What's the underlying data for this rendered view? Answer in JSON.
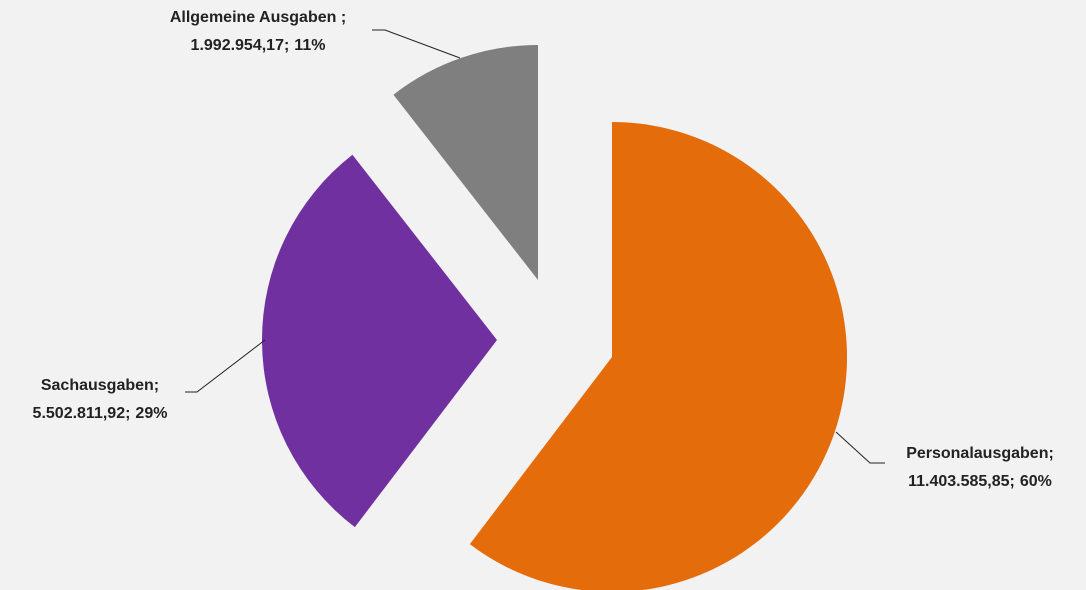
{
  "chart_data": {
    "type": "pie",
    "categories": [
      "Personalausgaben;",
      "Sachausgaben;",
      "Allgemeine Ausgaben ;"
    ],
    "values": [
      11403585.85,
      5502811.92,
      1992954.17
    ],
    "value_labels": [
      "11.403.585,85;",
      "5.502.811,92;",
      "1.992.954,17;"
    ],
    "percents": [
      60,
      29,
      11
    ],
    "percent_labels": [
      "60%",
      "29%",
      "11%"
    ],
    "colors": [
      "#e46c0a",
      "#7030a0",
      "#7f7f7f"
    ],
    "exploded": true
  }
}
